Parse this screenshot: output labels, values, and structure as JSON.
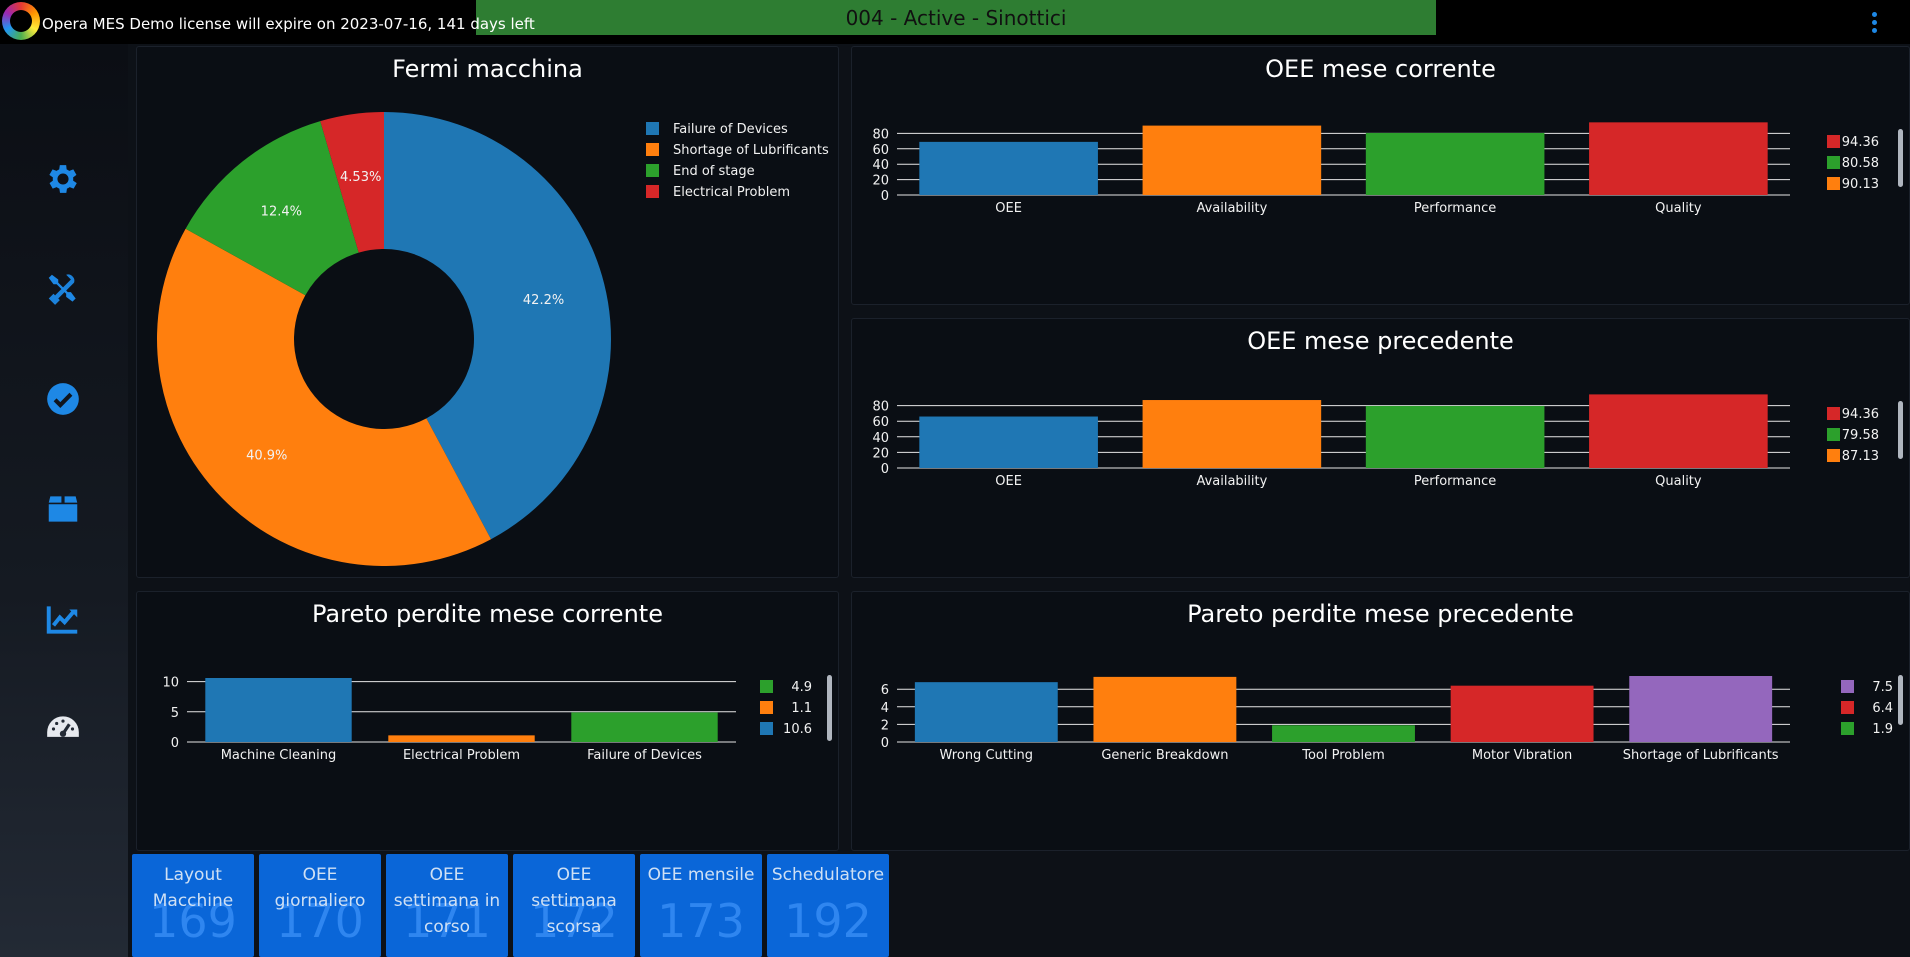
{
  "header": {
    "license_text": "Opera MES Demo license will expire on 2023-07-16, 141 days left",
    "banner": "004 - Active - Sinottici",
    "banner_color": "#2e7d32",
    "accent_color": "#1e88e5"
  },
  "sidebar": {
    "items": [
      {
        "icon": "gear-icon"
      },
      {
        "icon": "tools-icon"
      },
      {
        "icon": "check-circle-icon"
      },
      {
        "icon": "box-icon"
      },
      {
        "icon": "chart-trend-icon"
      },
      {
        "icon": "gauge-icon"
      }
    ]
  },
  "panels": {
    "downtime": {
      "title": "Fermi macchina"
    },
    "oee_current": {
      "title": "OEE mese corrente"
    },
    "oee_previous": {
      "title": "OEE mese precedente"
    },
    "pareto_current": {
      "title": "Pareto perdite mese corrente"
    },
    "pareto_previous": {
      "title": "Pareto perdite mese precedente"
    }
  },
  "chart_data": [
    {
      "id": "downtime",
      "type": "pie",
      "title": "Fermi macchina",
      "hole": true,
      "labels": [
        "Failure of Devices",
        "Shortage of Lubrificants",
        "End of stage",
        "Electrical Problem"
      ],
      "values": [
        42.2,
        40.9,
        12.4,
        4.53
      ],
      "value_labels": [
        "42.2%",
        "40.9%",
        "12.4%",
        "4.53%"
      ],
      "colors": [
        "#1f77b4",
        "#ff7f0e",
        "#2ca02c",
        "#d62728"
      ],
      "legend": "top-right"
    },
    {
      "id": "oee_current",
      "type": "bar",
      "title": "OEE mese corrente",
      "categories": [
        "OEE",
        "Availability",
        "Performance",
        "Quality"
      ],
      "values": [
        69,
        90.13,
        80.58,
        94.36
      ],
      "colors": [
        "#1f77b4",
        "#ff7f0e",
        "#2ca02c",
        "#d62728"
      ],
      "yticks": [
        0,
        20,
        40,
        60,
        80
      ],
      "ylim": [
        0,
        100
      ],
      "legend": "right",
      "legend_items": [
        {
          "label": "94.36",
          "color": "#d62728"
        },
        {
          "label": "80.58",
          "color": "#2ca02c"
        },
        {
          "label": "90.13",
          "color": "#ff7f0e"
        }
      ]
    },
    {
      "id": "oee_previous",
      "type": "bar",
      "title": "OEE mese precedente",
      "categories": [
        "OEE",
        "Availability",
        "Performance",
        "Quality"
      ],
      "values": [
        66,
        87.13,
        79.58,
        94.36
      ],
      "colors": [
        "#1f77b4",
        "#ff7f0e",
        "#2ca02c",
        "#d62728"
      ],
      "yticks": [
        0,
        20,
        40,
        60,
        80
      ],
      "ylim": [
        0,
        100
      ],
      "legend": "right",
      "legend_items": [
        {
          "label": "94.36",
          "color": "#d62728"
        },
        {
          "label": "79.58",
          "color": "#2ca02c"
        },
        {
          "label": "87.13",
          "color": "#ff7f0e"
        }
      ]
    },
    {
      "id": "pareto_current",
      "type": "bar",
      "title": "Pareto perdite mese corrente",
      "categories": [
        "Machine Cleaning",
        "Electrical Problem",
        "Failure of Devices"
      ],
      "values": [
        10.6,
        1.1,
        4.9
      ],
      "colors": [
        "#1f77b4",
        "#ff7f0e",
        "#2ca02c"
      ],
      "yticks": [
        0,
        5,
        10
      ],
      "ylim": [
        0,
        10.6
      ],
      "legend": "right",
      "legend_items": [
        {
          "label": "4.9",
          "color": "#2ca02c"
        },
        {
          "label": "1.1",
          "color": "#ff7f0e"
        },
        {
          "label": "10.6",
          "color": "#1f77b4"
        }
      ]
    },
    {
      "id": "pareto_previous",
      "type": "bar",
      "title": "Pareto perdite mese precedente",
      "categories": [
        "Wrong Cutting",
        "Generic Breakdown",
        "Tool Problem",
        "Motor Vibration",
        "Shortage of Lubrificants"
      ],
      "values": [
        6.8,
        7.4,
        1.9,
        6.4,
        7.5
      ],
      "colors": [
        "#1f77b4",
        "#ff7f0e",
        "#2ca02c",
        "#d62728",
        "#9467bd"
      ],
      "yticks": [
        0,
        2,
        4,
        6
      ],
      "ylim": [
        0,
        7.5
      ],
      "legend": "right",
      "legend_items": [
        {
          "label": "7.5",
          "color": "#9467bd"
        },
        {
          "label": "6.4",
          "color": "#d62728"
        },
        {
          "label": "1.9",
          "color": "#2ca02c"
        }
      ]
    }
  ],
  "tiles": [
    {
      "label": "Layout Macchine",
      "number": "169"
    },
    {
      "label": "OEE giornaliero",
      "number": "170"
    },
    {
      "label": "OEE settimana in corso",
      "number": "171"
    },
    {
      "label": "OEE settimana scorsa",
      "number": "172"
    },
    {
      "label": "OEE mensile",
      "number": "173"
    },
    {
      "label": "Schedulatore",
      "number": "192"
    }
  ]
}
